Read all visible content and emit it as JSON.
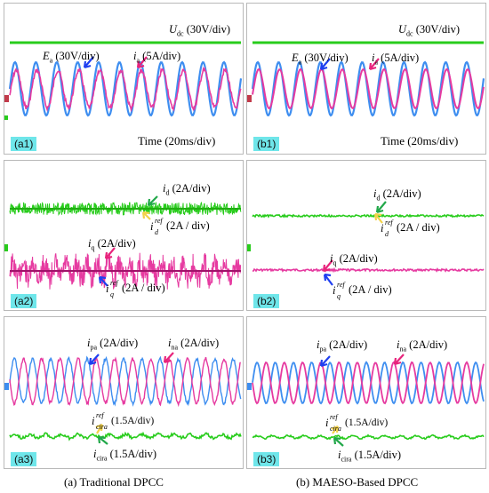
{
  "colors": {
    "green": "#28cc1c",
    "blue": "#3e8ef0",
    "magenta": "#e63aa0",
    "tag_bg": "#6fe6ea",
    "arrow_blue": "#1f3ff0",
    "arrow_magenta": "#e8247c",
    "arrow_green": "#22a84a",
    "arrow_yellow": "#f2d24a"
  },
  "panels": {
    "a1": {
      "tag": "(a1)",
      "udc_sym": "U",
      "udc_sub": "dc",
      "udc_scale": "(30V/div)",
      "ea_sym": "E",
      "ea_sub": "a",
      "ea_scale": "(30V/div)",
      "ia_sym": "i",
      "ia_sub": "a",
      "ia_scale": "(5A/div)",
      "time": "Time (20ms/div)"
    },
    "b1": {
      "tag": "(b1)",
      "udc_sym": "U",
      "udc_sub": "dc",
      "udc_scale": "(30V/div)",
      "ea_sym": "E",
      "ea_sub": "a",
      "ea_scale": "(30V/div)",
      "ia_sym": "i",
      "ia_sub": "a",
      "ia_scale": "(5A/div)",
      "time": "Time (20ms/div)"
    },
    "a2": {
      "tag": "(a2)",
      "id_sym": "i",
      "id_sub": "d",
      "id_scale": "(2A/div)",
      "idref_sym": "i",
      "idref_sup": "ref",
      "idref_sub": "d",
      "idref_scale": "(2A / div)",
      "iq_sym": "i",
      "iq_sub": "q",
      "iq_scale": "(2A/div)",
      "iqref_sym": "i",
      "iqref_sup": "ref",
      "iqref_sub": "q",
      "iqref_scale": "(2A / div)"
    },
    "b2": {
      "tag": "(b2)",
      "id_sym": "i",
      "id_sub": "d",
      "id_scale": "(2A/div)",
      "idref_sym": "i",
      "idref_sup": "ref",
      "idref_sub": "d",
      "idref_scale": "(2A / div)",
      "iq_sym": "i",
      "iq_sub": "q",
      "iq_scale": "(2A/div)",
      "iqref_sym": "i",
      "iqref_sup": "ref",
      "iqref_sub": "q",
      "iqref_scale": "(2A / div)"
    },
    "a3": {
      "tag": "(a3)",
      "ipa_sym": "i",
      "ipa_sub": "pa",
      "ipa_scale": "(2A/div)",
      "ina_sym": "i",
      "ina_sub": "na",
      "ina_scale": "(2A/div)",
      "icref_sym": "i",
      "icref_sup": "ref",
      "icref_sub": "cira",
      "icref_scale": "(1.5A/div)",
      "icira_sym": "i",
      "icira_sub": "cira",
      "icira_scale": "(1.5A/div)"
    },
    "b3": {
      "tag": "(b3)",
      "ipa_sym": "i",
      "ipa_sub": "pa",
      "ipa_scale": "(2A/div)",
      "ina_sym": "i",
      "ina_sub": "na",
      "ina_scale": "(2A/div)",
      "icref_sym": "i",
      "icref_sup": "ref",
      "icref_sub": "cira",
      "icref_scale": "(1.5A/div)",
      "icira_sym": "i",
      "icira_sub": "cira",
      "icira_scale": "(1.5A/div)"
    }
  },
  "captions": {
    "left": "(a) Traditional DPCC",
    "right": "(b) MAESO-Based DPCC"
  }
}
